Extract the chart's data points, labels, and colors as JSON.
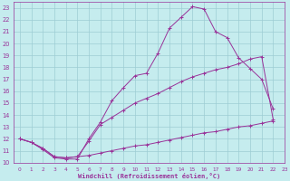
{
  "xlabel": "Windchill (Refroidissement éolien,°C)",
  "xlim": [
    -0.5,
    23
  ],
  "ylim": [
    10,
    23.5
  ],
  "yticks": [
    10,
    11,
    12,
    13,
    14,
    15,
    16,
    17,
    18,
    19,
    20,
    21,
    22,
    23
  ],
  "xticks": [
    0,
    1,
    2,
    3,
    4,
    5,
    6,
    7,
    8,
    9,
    10,
    11,
    12,
    13,
    14,
    15,
    16,
    17,
    18,
    19,
    20,
    21,
    22,
    23
  ],
  "bg_color": "#c5ecee",
  "grid_color": "#9dcdd4",
  "line_color": "#993399",
  "line1_x": [
    0,
    1,
    2,
    3,
    4,
    5,
    6,
    7,
    8,
    9,
    10,
    11,
    12,
    13,
    14,
    15,
    16,
    17,
    18,
    19,
    20,
    21,
    22
  ],
  "line1_y": [
    12.0,
    11.7,
    11.1,
    10.4,
    10.3,
    10.3,
    12.0,
    13.4,
    15.2,
    16.3,
    17.3,
    17.5,
    19.2,
    21.3,
    22.2,
    23.1,
    22.9,
    21.0,
    20.5,
    18.8,
    17.9,
    17.0,
    14.5
  ],
  "line2_x": [
    0,
    1,
    2,
    3,
    4,
    5,
    6,
    7,
    8,
    9,
    10,
    11,
    12,
    13,
    14,
    15,
    16,
    17,
    18,
    19,
    20,
    21,
    22
  ],
  "line2_y": [
    12.0,
    11.7,
    11.2,
    10.5,
    10.4,
    10.5,
    11.8,
    13.2,
    13.8,
    14.4,
    15.0,
    15.4,
    15.8,
    16.3,
    16.8,
    17.2,
    17.5,
    17.8,
    18.0,
    18.3,
    18.7,
    18.9,
    13.6
  ],
  "line3_x": [
    0,
    1,
    2,
    3,
    4,
    5,
    6,
    7,
    8,
    9,
    10,
    11,
    12,
    13,
    14,
    15,
    16,
    17,
    18,
    19,
    20,
    21,
    22
  ],
  "line3_y": [
    12.0,
    11.7,
    11.2,
    10.5,
    10.4,
    10.5,
    10.6,
    10.8,
    11.0,
    11.2,
    11.4,
    11.5,
    11.7,
    11.9,
    12.1,
    12.3,
    12.5,
    12.6,
    12.8,
    13.0,
    13.1,
    13.3,
    13.5
  ]
}
